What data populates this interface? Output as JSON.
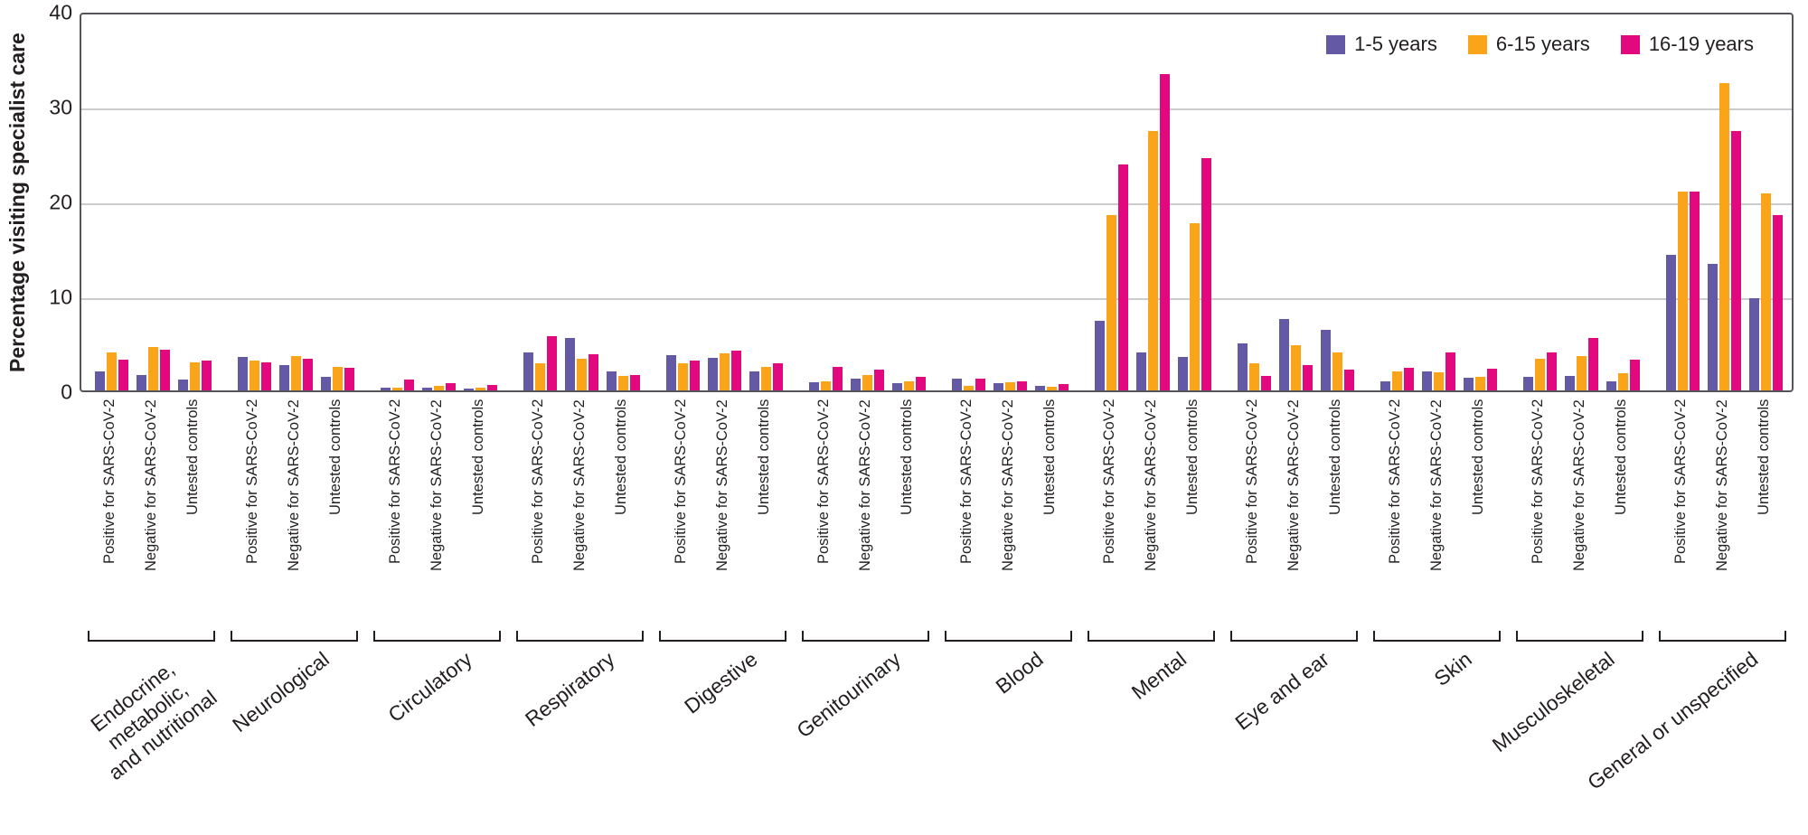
{
  "chart_data": {
    "type": "bar",
    "title": "",
    "ylabel": "Percentage visiting specialist care",
    "xlabel": "",
    "ylim": [
      0,
      40
    ],
    "yticks": [
      0,
      10,
      20,
      30,
      40
    ],
    "grid": true,
    "legend_position": "top-right",
    "unit": "%",
    "series_names": [
      "1-5 years",
      "6-15 years",
      "16-19 years"
    ],
    "series_colors": [
      "#6459a4",
      "#faa41a",
      "#e2097e"
    ],
    "subgroup_labels": [
      "Positive for SARS-CoV-2",
      "Negative for SARS-CoV-2",
      "Untested controls"
    ],
    "categories": [
      {
        "label": "Endocrine,\nmetabolic,\nand nutritional",
        "groups": [
          [
            2.0,
            4.0,
            3.2
          ],
          [
            1.6,
            4.6,
            4.3
          ],
          [
            1.1,
            3.0,
            3.1
          ]
        ]
      },
      {
        "label": "Neurological",
        "groups": [
          [
            3.5,
            3.1,
            3.0
          ],
          [
            2.7,
            3.6,
            3.3
          ],
          [
            1.4,
            2.5,
            2.4
          ]
        ]
      },
      {
        "label": "Circulatory",
        "groups": [
          [
            0.3,
            0.3,
            1.1
          ],
          [
            0.3,
            0.5,
            0.8
          ],
          [
            0.2,
            0.3,
            0.6
          ]
        ]
      },
      {
        "label": "Respiratory",
        "groups": [
          [
            4.0,
            2.9,
            5.7
          ],
          [
            5.5,
            3.3,
            3.8
          ],
          [
            2.0,
            1.5,
            1.6
          ]
        ]
      },
      {
        "label": "Digestive",
        "groups": [
          [
            3.7,
            2.9,
            3.1
          ],
          [
            3.4,
            3.9,
            4.2
          ],
          [
            2.0,
            2.5,
            2.9
          ]
        ]
      },
      {
        "label": "Genitourinary",
        "groups": [
          [
            0.9,
            1.0,
            2.5
          ],
          [
            1.2,
            1.6,
            2.2
          ],
          [
            0.8,
            1.0,
            1.4
          ]
        ]
      },
      {
        "label": "Blood",
        "groups": [
          [
            1.2,
            0.5,
            1.2
          ],
          [
            0.8,
            0.9,
            1.0
          ],
          [
            0.5,
            0.4,
            0.7
          ]
        ]
      },
      {
        "label": "Mental",
        "groups": [
          [
            7.3,
            18.5,
            23.8
          ],
          [
            4.0,
            27.3,
            33.3
          ],
          [
            3.5,
            17.6,
            24.5
          ]
        ]
      },
      {
        "label": "Eye and ear",
        "groups": [
          [
            5.0,
            2.9,
            1.5
          ],
          [
            7.5,
            4.8,
            2.7
          ],
          [
            6.4,
            4.0,
            2.2
          ]
        ]
      },
      {
        "label": "Skin",
        "groups": [
          [
            1.0,
            2.0,
            2.4
          ],
          [
            2.0,
            1.9,
            4.0
          ],
          [
            1.3,
            1.4,
            2.3
          ]
        ]
      },
      {
        "label": "Musculoskeletal",
        "groups": [
          [
            1.4,
            3.3,
            4.0
          ],
          [
            1.5,
            3.6,
            5.5
          ],
          [
            1.0,
            1.8,
            3.2
          ]
        ]
      },
      {
        "label": "General or unspecified",
        "groups": [
          [
            14.3,
            21.0,
            21.0
          ],
          [
            13.3,
            32.4,
            27.3
          ],
          [
            9.7,
            20.8,
            18.5
          ]
        ]
      }
    ]
  }
}
